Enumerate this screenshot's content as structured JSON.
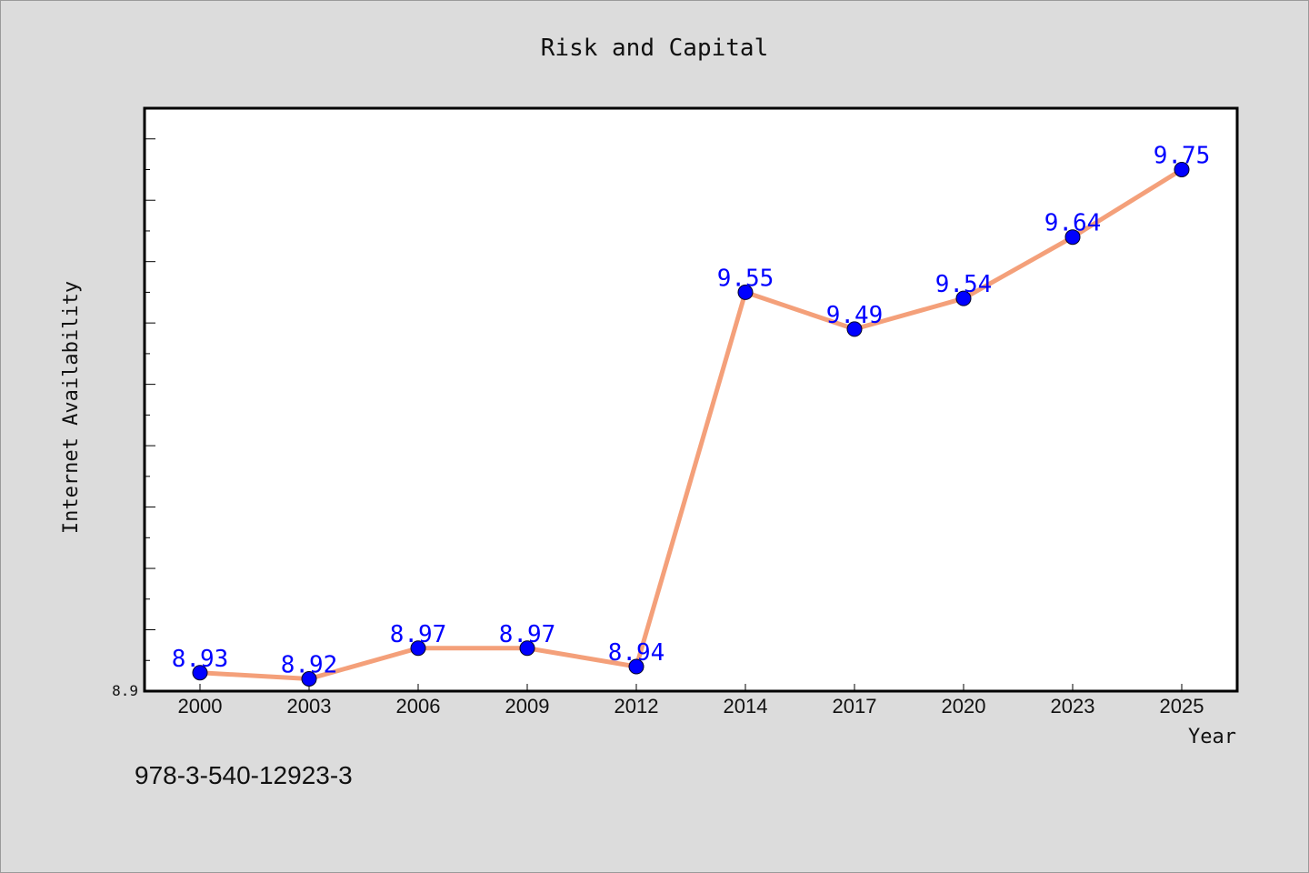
{
  "chart_data": {
    "type": "line",
    "title": "Risk and Capital",
    "xlabel": "Year",
    "ylabel": "Internet Availability",
    "categories": [
      "2000",
      "2003",
      "2006",
      "2009",
      "2012",
      "2014",
      "2017",
      "2020",
      "2023",
      "2025"
    ],
    "series": [
      {
        "values": [
          8.93,
          8.92,
          8.97,
          8.97,
          8.94,
          9.55,
          9.49,
          9.54,
          9.64,
          9.75
        ],
        "line_color": "#f4a07a",
        "marker_color": "#0000ff"
      }
    ],
    "ylim": [
      8.9,
      9.85
    ],
    "yticks_labeled": [
      "8.9"
    ],
    "data_labels": [
      "8.93",
      "8.92",
      "8.97",
      "8.97",
      "8.94",
      "9.55",
      "9.49",
      "9.54",
      "9.64",
      "9.75"
    ],
    "grid": false,
    "legend": "none"
  },
  "footnote": "978-3-540-12923-3",
  "colors": {
    "background": "#dcdcdc",
    "plot_background": "#ffffff",
    "line": "#f4a07a",
    "marker": "#0000ff",
    "data_label": "#0000ff"
  }
}
